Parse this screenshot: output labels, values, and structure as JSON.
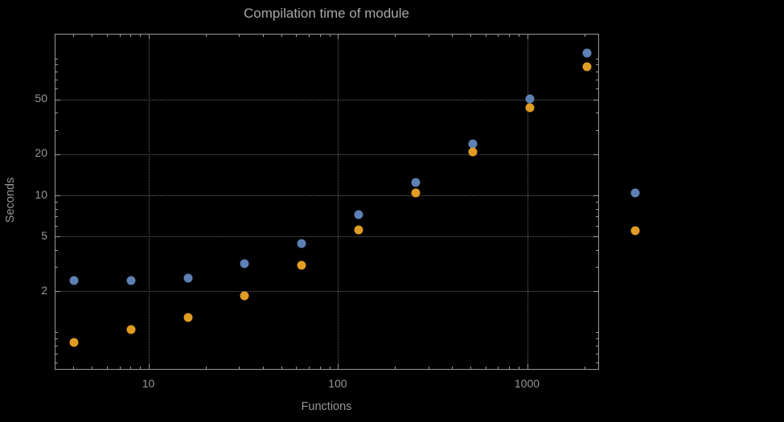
{
  "chart_data": {
    "type": "scatter",
    "title": "Compilation time of module",
    "xlabel": "Functions",
    "ylabel": "Seconds",
    "xscale": "log",
    "yscale": "log",
    "xlim": [
      3.2,
      2400
    ],
    "ylim": [
      0.53,
      150
    ],
    "x": [
      4,
      8,
      16,
      32,
      64,
      128,
      256,
      512,
      1024,
      2048
    ],
    "series": [
      {
        "name": "blue",
        "color": "#5e81b5",
        "values": [
          2.4,
          2.4,
          2.5,
          3.2,
          4.5,
          7.3,
          12.5,
          24,
          51,
          110
        ]
      },
      {
        "name": "orange",
        "color": "#e19c24",
        "values": [
          0.85,
          1.05,
          1.3,
          1.85,
          3.1,
          5.6,
          10.5,
          21,
          44,
          87
        ]
      }
    ],
    "x_ticks": [
      {
        "value": 10,
        "label": "10"
      },
      {
        "value": 100,
        "label": "100"
      },
      {
        "value": 1000,
        "label": "1000"
      }
    ],
    "y_ticks": [
      {
        "value": 2,
        "label": "2"
      },
      {
        "value": 5,
        "label": "5"
      },
      {
        "value": 10,
        "label": "10"
      },
      {
        "value": 20,
        "label": "20"
      },
      {
        "value": 50,
        "label": "50"
      }
    ],
    "grid": {
      "x_values": [
        10,
        100,
        1000
      ],
      "y_values": [
        2,
        5,
        10,
        20,
        50
      ],
      "style": "dotted",
      "color": "#686868"
    },
    "legend": {
      "position": "right",
      "entries": [
        {
          "series": "blue"
        },
        {
          "series": "orange"
        }
      ]
    },
    "colors": {
      "background": "#000000",
      "frame": "#9a9a9a",
      "text": "#979797"
    }
  }
}
